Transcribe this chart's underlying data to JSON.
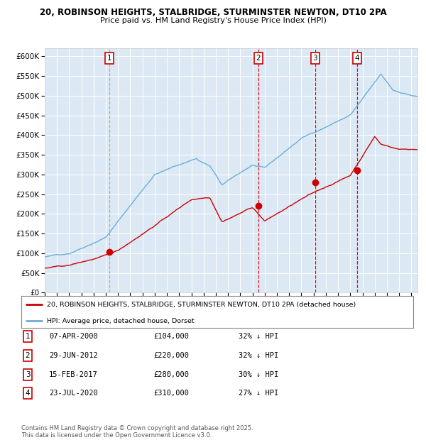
{
  "title1": "20, ROBINSON HEIGHTS, STALBRIDGE, STURMINSTER NEWTON, DT10 2PA",
  "title2": "Price paid vs. HM Land Registry's House Price Index (HPI)",
  "bg_color": "#dce9f5",
  "red_color": "#cc0000",
  "blue_color": "#6baed6",
  "sale_dates": [
    2000.27,
    2012.49,
    2017.12,
    2020.56
  ],
  "sale_prices": [
    104000,
    220000,
    280000,
    310000
  ],
  "sale_labels": [
    "1",
    "2",
    "3",
    "4"
  ],
  "vline_colors": [
    "#aaaaaa",
    "#cc0000",
    "#cc0000",
    "#cc0000"
  ],
  "legend_red": "20, ROBINSON HEIGHTS, STALBRIDGE, STURMINSTER NEWTON, DT10 2PA (detached house)",
  "legend_blue": "HPI: Average price, detached house, Dorset",
  "table": [
    {
      "num": "1",
      "date": "07-APR-2000",
      "price": "£104,000",
      "pct": "32% ↓ HPI"
    },
    {
      "num": "2",
      "date": "29-JUN-2012",
      "price": "£220,000",
      "pct": "32% ↓ HPI"
    },
    {
      "num": "3",
      "date": "15-FEB-2017",
      "price": "£280,000",
      "pct": "30% ↓ HPI"
    },
    {
      "num": "4",
      "date": "23-JUL-2020",
      "price": "£310,000",
      "pct": "27% ↓ HPI"
    }
  ],
  "footer": "Contains HM Land Registry data © Crown copyright and database right 2025.\nThis data is licensed under the Open Government Licence v3.0.",
  "ylim": [
    0,
    620000
  ],
  "yticks": [
    0,
    50000,
    100000,
    150000,
    200000,
    250000,
    300000,
    350000,
    400000,
    450000,
    500000,
    550000,
    600000
  ],
  "xlim_start": 1995.0,
  "xlim_end": 2025.5
}
